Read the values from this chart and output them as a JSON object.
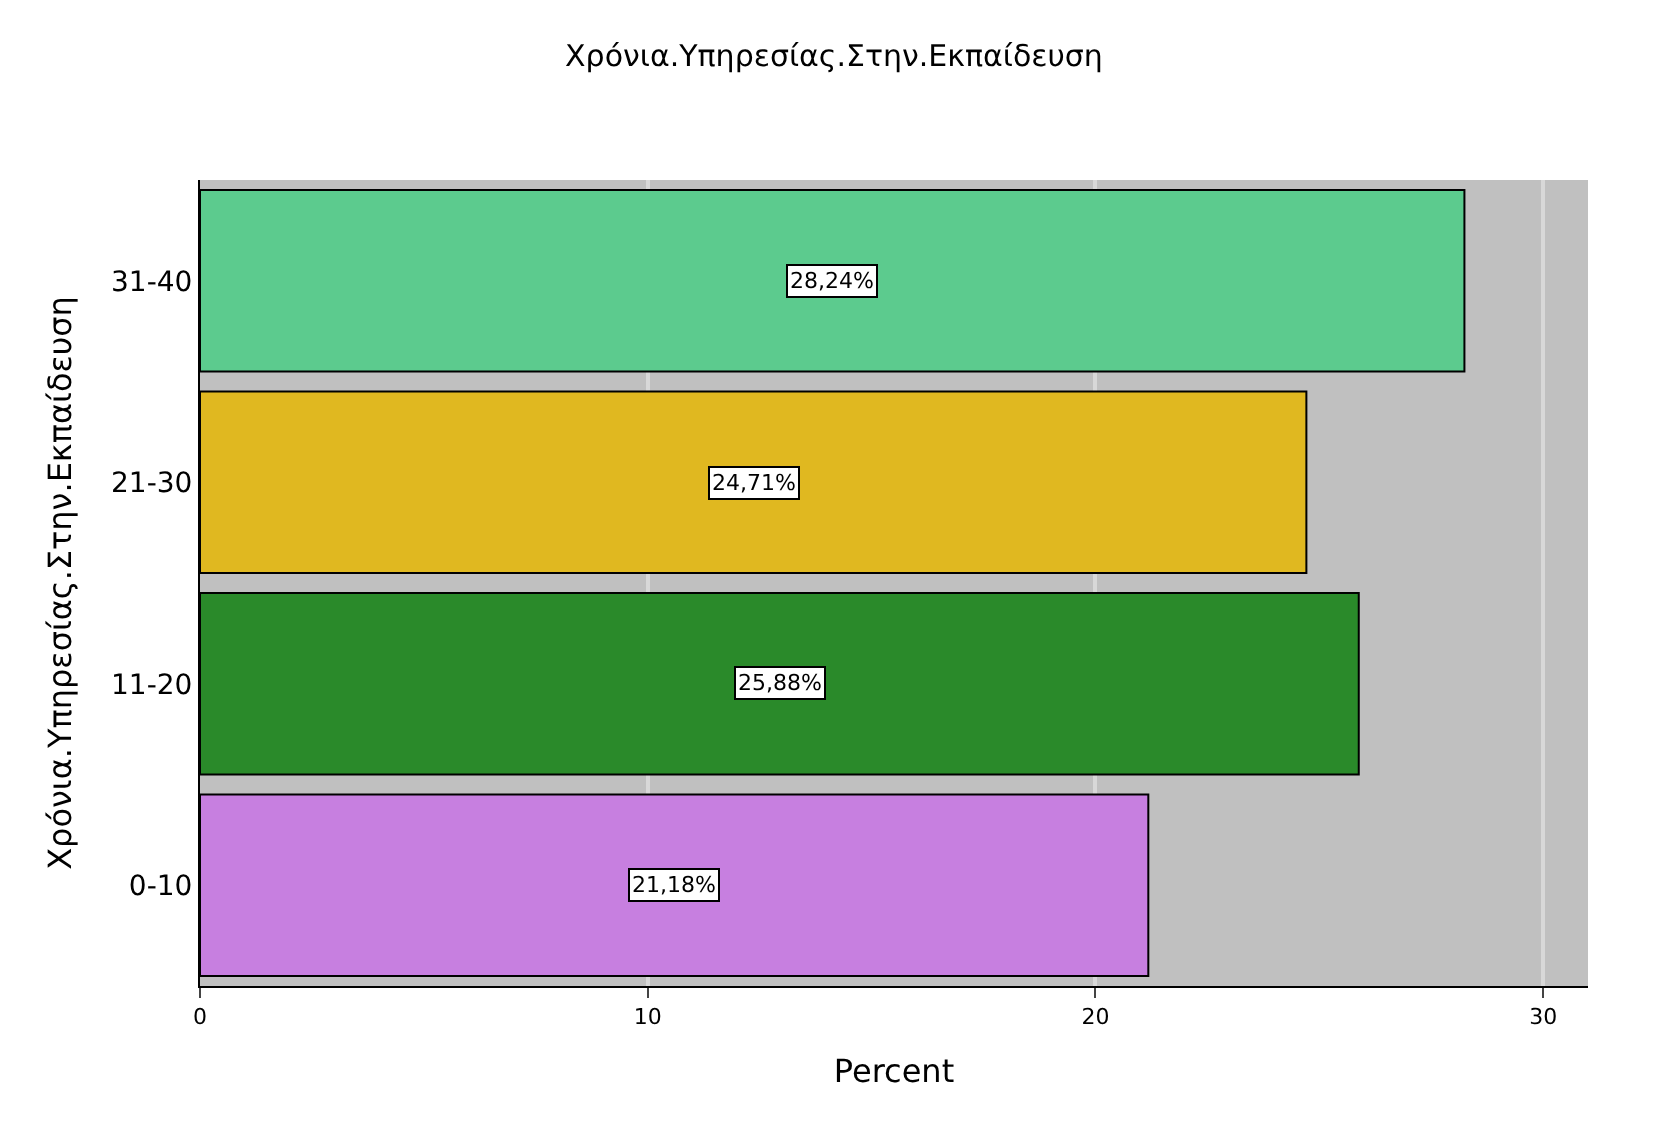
{
  "chart_data": {
    "type": "bar",
    "orientation": "horizontal",
    "title": "Χρόνια.Υπηρεσίας.Στην.Εκπαίδευση",
    "xlabel": "Percent",
    "ylabel": "Χρόνια.Υπηρεσίας.Στην.Εκπαίδευση",
    "categories": [
      "31-40",
      "21-30",
      "11-20",
      "0-10"
    ],
    "values": [
      28.24,
      24.71,
      25.88,
      21.18
    ],
    "colors": [
      "#5ccb8e",
      "#e0b820",
      "#2a8a2a",
      "#c77fe0"
    ],
    "value_labels": [
      "28,24%",
      "24,71%",
      "25,88%",
      "21,18%"
    ],
    "xlim": [
      0,
      31
    ],
    "xticks": [
      0,
      10,
      20,
      30
    ],
    "grid": "x"
  }
}
